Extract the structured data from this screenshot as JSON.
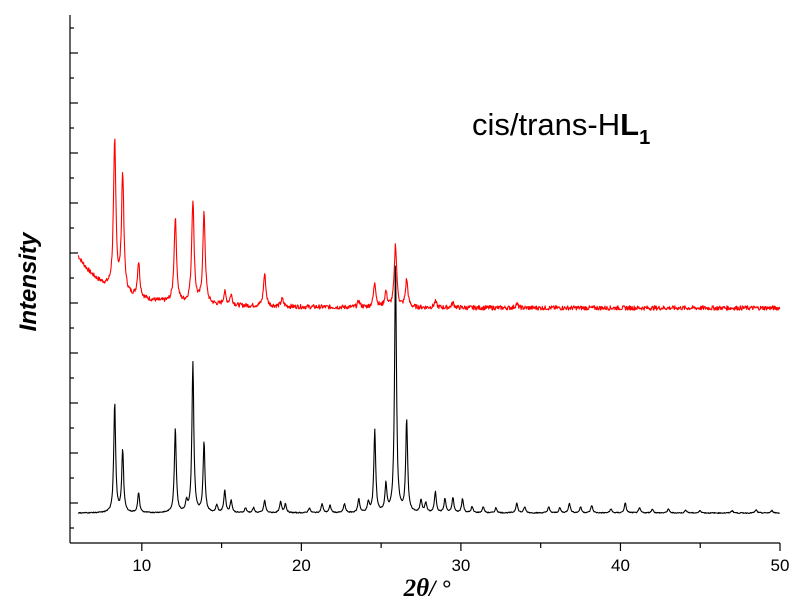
{
  "chart_data": {
    "type": "line",
    "xlabel_prefix": "2",
    "xlabel_theta": "θ",
    "xlabel_suffix": "/ °",
    "ylabel": "Intensity",
    "annotation": {
      "text": "cis/trans-H",
      "bold": "L",
      "sub": "1"
    },
    "xlim": [
      6,
      50
    ],
    "x_ticks": [
      10,
      20,
      30,
      40,
      50
    ],
    "y_ticks_visible": false,
    "series": [
      {
        "color": "#ff0000",
        "peaks_baseline": 0.58,
        "start_value": 0.81,
        "peaks": [
          {
            "x": 8.3,
            "y": 2.95
          },
          {
            "x": 8.8,
            "y": 2.35
          },
          {
            "x": 9.8,
            "y": 0.7
          },
          {
            "x": 12.1,
            "y": 1.7
          },
          {
            "x": 13.2,
            "y": 2.05
          },
          {
            "x": 13.9,
            "y": 1.8
          },
          {
            "x": 15.2,
            "y": 0.25
          },
          {
            "x": 15.6,
            "y": 0.2
          },
          {
            "x": 17.7,
            "y": 0.65
          },
          {
            "x": 18.8,
            "y": 0.15
          },
          {
            "x": 23.6,
            "y": 0.12
          },
          {
            "x": 24.6,
            "y": 0.5
          },
          {
            "x": 25.3,
            "y": 0.3
          },
          {
            "x": 25.9,
            "y": 1.25
          },
          {
            "x": 26.6,
            "y": 0.55
          },
          {
            "x": 28.4,
            "y": 0.12
          },
          {
            "x": 29.5,
            "y": 0.1
          },
          {
            "x": 33.5,
            "y": 0.08
          }
        ]
      },
      {
        "color": "#000000",
        "peaks": [
          {
            "x": 8.3,
            "y": 2.2
          },
          {
            "x": 8.8,
            "y": 1.25
          },
          {
            "x": 9.8,
            "y": 0.4
          },
          {
            "x": 12.1,
            "y": 1.7
          },
          {
            "x": 12.8,
            "y": 0.2
          },
          {
            "x": 13.2,
            "y": 3.0
          },
          {
            "x": 13.9,
            "y": 1.4
          },
          {
            "x": 14.7,
            "y": 0.15
          },
          {
            "x": 15.2,
            "y": 0.45
          },
          {
            "x": 15.6,
            "y": 0.25
          },
          {
            "x": 16.5,
            "y": 0.1
          },
          {
            "x": 17.0,
            "y": 0.1
          },
          {
            "x": 17.7,
            "y": 0.25
          },
          {
            "x": 18.7,
            "y": 0.22
          },
          {
            "x": 19.0,
            "y": 0.18
          },
          {
            "x": 20.5,
            "y": 0.1
          },
          {
            "x": 21.3,
            "y": 0.18
          },
          {
            "x": 21.8,
            "y": 0.15
          },
          {
            "x": 22.7,
            "y": 0.18
          },
          {
            "x": 23.6,
            "y": 0.28
          },
          {
            "x": 24.2,
            "y": 0.2
          },
          {
            "x": 24.6,
            "y": 1.65
          },
          {
            "x": 25.3,
            "y": 0.55
          },
          {
            "x": 25.9,
            "y": 5.0
          },
          {
            "x": 26.6,
            "y": 1.85
          },
          {
            "x": 27.5,
            "y": 0.25
          },
          {
            "x": 27.8,
            "y": 0.2
          },
          {
            "x": 28.4,
            "y": 0.42
          },
          {
            "x": 29.0,
            "y": 0.28
          },
          {
            "x": 29.5,
            "y": 0.3
          },
          {
            "x": 30.1,
            "y": 0.28
          },
          {
            "x": 30.7,
            "y": 0.12
          },
          {
            "x": 31.4,
            "y": 0.12
          },
          {
            "x": 32.2,
            "y": 0.1
          },
          {
            "x": 33.5,
            "y": 0.2
          },
          {
            "x": 34.0,
            "y": 0.12
          },
          {
            "x": 35.5,
            "y": 0.12
          },
          {
            "x": 36.2,
            "y": 0.1
          },
          {
            "x": 36.8,
            "y": 0.2
          },
          {
            "x": 37.5,
            "y": 0.12
          },
          {
            "x": 38.2,
            "y": 0.15
          },
          {
            "x": 39.4,
            "y": 0.08
          },
          {
            "x": 40.3,
            "y": 0.2
          },
          {
            "x": 41.2,
            "y": 0.1
          },
          {
            "x": 42.0,
            "y": 0.08
          },
          {
            "x": 43.0,
            "y": 0.08
          },
          {
            "x": 44.1,
            "y": 0.06
          },
          {
            "x": 45.0,
            "y": 0.05
          },
          {
            "x": 47.0,
            "y": 0.05
          },
          {
            "x": 48.5,
            "y": 0.06
          },
          {
            "x": 49.5,
            "y": 0.05
          }
        ]
      }
    ],
    "grid": false,
    "legend": "none"
  }
}
